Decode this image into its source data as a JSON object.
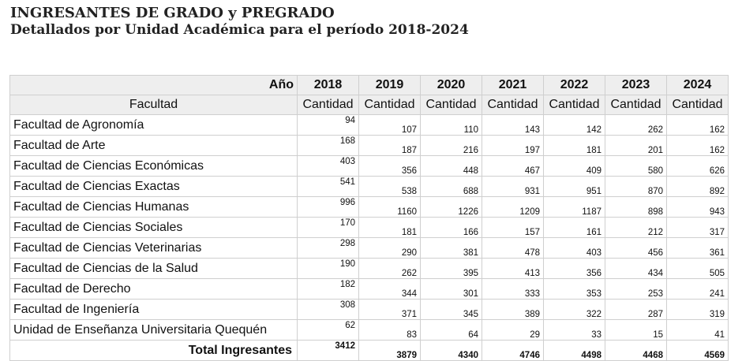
{
  "report": {
    "title": "INGRESANTES DE GRADO y PREGRADO",
    "subtitle": "Detallados por Unidad Académica para el período 2018-2024"
  },
  "table": {
    "year_header": "Año",
    "unit_header": "Facultad",
    "years": [
      "2018",
      "2019",
      "2020",
      "2021",
      "2022",
      "2023",
      "2024"
    ],
    "measure_labels": [
      "Cantidad",
      "Cantidad",
      "Cantidad",
      "Cantidad",
      "Cantidad",
      "Cantidad",
      "Cantidad"
    ],
    "rows": [
      {
        "name": "Facultad de Agronomía",
        "values": [
          "94",
          "107",
          "110",
          "143",
          "142",
          "262",
          "162"
        ]
      },
      {
        "name": "Facultad de Arte",
        "values": [
          "168",
          "187",
          "216",
          "197",
          "181",
          "201",
          "162"
        ]
      },
      {
        "name": "Facultad de Ciencias Económicas",
        "values": [
          "403",
          "356",
          "448",
          "467",
          "409",
          "580",
          "626"
        ]
      },
      {
        "name": "Facultad de Ciencias Exactas",
        "values": [
          "541",
          "538",
          "688",
          "931",
          "951",
          "870",
          "892"
        ]
      },
      {
        "name": "Facultad de Ciencias Humanas",
        "values": [
          "996",
          "1160",
          "1226",
          "1209",
          "1187",
          "898",
          "943"
        ]
      },
      {
        "name": "Facultad de Ciencias Sociales",
        "values": [
          "170",
          "181",
          "166",
          "157",
          "161",
          "212",
          "317"
        ]
      },
      {
        "name": "Facultad de Ciencias Veterinarias",
        "values": [
          "298",
          "290",
          "381",
          "478",
          "403",
          "456",
          "361"
        ]
      },
      {
        "name": "Facultad de Ciencias de la Salud",
        "values": [
          "190",
          "262",
          "395",
          "413",
          "356",
          "434",
          "505"
        ]
      },
      {
        "name": "Facultad de Derecho",
        "values": [
          "182",
          "344",
          "301",
          "333",
          "353",
          "253",
          "241"
        ]
      },
      {
        "name": "Facultad de Ingeniería",
        "values": [
          "308",
          "371",
          "345",
          "389",
          "322",
          "287",
          "319"
        ]
      },
      {
        "name": "Unidad de Enseñanza Universitaria Quequén",
        "values": [
          "62",
          "83",
          "64",
          "29",
          "33",
          "15",
          "41"
        ]
      }
    ],
    "total": {
      "name": "Total Ingresantes",
      "values": [
        "3412",
        "3879",
        "4340",
        "4746",
        "4498",
        "4468",
        "4569"
      ]
    }
  }
}
